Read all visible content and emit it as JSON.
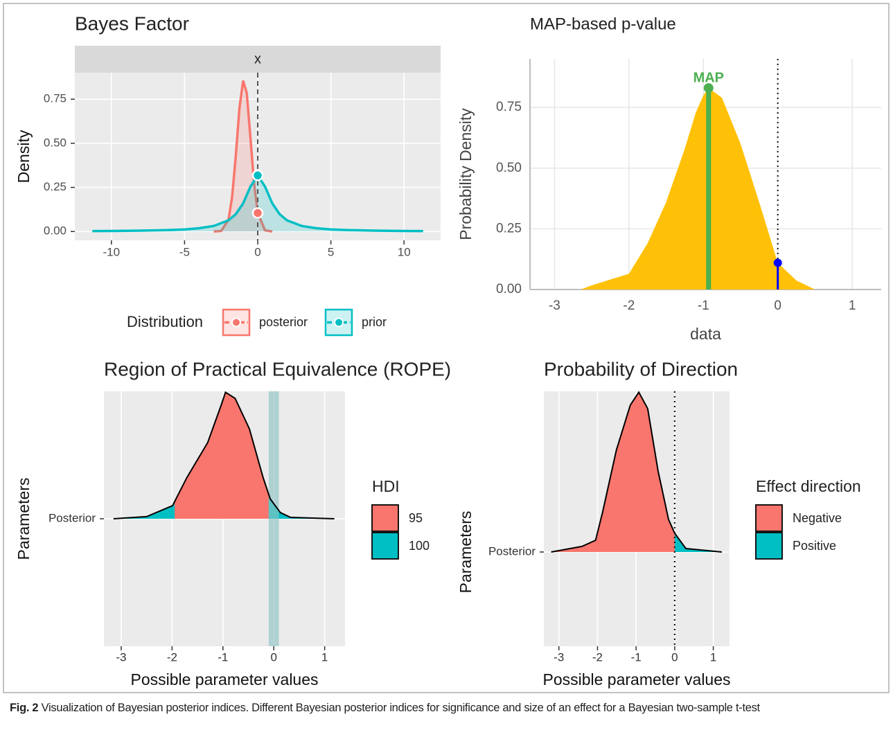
{
  "chart_data": [
    {
      "type": "density",
      "title": "Bayes Factor",
      "facet_label": "x",
      "ylabel": "Density",
      "xlim": [
        -12.5,
        12.5
      ],
      "xticks": [
        -10,
        -5,
        0,
        5,
        10
      ],
      "ylim": [
        -0.05,
        0.9
      ],
      "yticks": [
        {
          "value": 0,
          "label": "0.00"
        },
        0.25,
        {
          "value": 0.5,
          "label": "0.50"
        },
        0.75
      ],
      "grid": true,
      "vline": 0,
      "legend_title": "Distribution",
      "legend": "bottom",
      "series": [
        {
          "name": "posterior",
          "color": "#F8766D",
          "x": [
            -3,
            -2.5,
            -2,
            -1.75,
            -1.5,
            -1.25,
            -1,
            -0.75,
            -0.5,
            -0.25,
            0,
            0.5,
            1
          ],
          "values": [
            0,
            0.003,
            0.066,
            0.194,
            0.426,
            0.698,
            0.855,
            0.784,
            0.537,
            0.275,
            0.105,
            0.007,
            0
          ]
        },
        {
          "name": "prior",
          "color": "#00BFC4",
          "x": [
            -11.3,
            -10,
            -8,
            -6,
            -5,
            -4,
            -3,
            -2,
            -1.5,
            -1,
            -0.5,
            0,
            0.5,
            1,
            1.5,
            2,
            3,
            4,
            5,
            6,
            8,
            10,
            11.3
          ],
          "values": [
            0.0025,
            0.0031,
            0.0049,
            0.0086,
            0.0122,
            0.0187,
            0.0318,
            0.0636,
            0.0978,
            0.159,
            0.254,
            0.318,
            0.254,
            0.159,
            0.0978,
            0.0636,
            0.0318,
            0.0187,
            0.0122,
            0.0086,
            0.0049,
            0.0031,
            0.0025
          ]
        }
      ]
    },
    {
      "type": "area",
      "title": "MAP-based p-value",
      "xlabel": "data",
      "ylabel": "Probability Density",
      "xlim": [
        -3.33,
        1.39
      ],
      "xticks": [
        -3,
        -2,
        -1,
        0,
        1
      ],
      "ylim": [
        0,
        0.95
      ],
      "yticks": [
        {
          "value": 0,
          "label": "0.00"
        },
        0.25,
        {
          "value": 0.5,
          "label": "0.50"
        },
        0.75
      ],
      "grid": true,
      "color": "#FFC107",
      "x": [
        -2.65,
        -2.5,
        -2,
        -1.75,
        -1.5,
        -1.25,
        -1.1,
        -1,
        -0.93,
        -0.75,
        -0.5,
        -0.25,
        0,
        0.25,
        0.5
      ],
      "values": [
        0,
        0.017,
        0.065,
        0.19,
        0.36,
        0.58,
        0.73,
        0.8,
        0.83,
        0.79,
        0.6,
        0.36,
        0.11,
        0.037,
        0
      ],
      "map_label": "MAP",
      "map_x": -0.93,
      "map_color": "#4CAF50",
      "vline": 0,
      "point_color": "#0000FF"
    },
    {
      "type": "ridge",
      "title": "Region of Practical Equivalence (ROPE)",
      "xlabel": "Possible parameter values",
      "ylabel": "Parameters",
      "categories": [
        "Posterior"
      ],
      "xlim": [
        -3.34,
        1.4
      ],
      "xticks": [
        -3,
        -2,
        -1,
        0,
        1
      ],
      "grid": true,
      "x": [
        -3.15,
        -2.5,
        -1.99,
        -1.71,
        -1.3,
        -1.03,
        -0.95,
        -0.76,
        -0.48,
        -0.21,
        -0.07,
        0.13,
        0.33,
        1.19
      ],
      "values": [
        0,
        0.014,
        0.086,
        0.27,
        0.5,
        0.75,
        0.83,
        0.79,
        0.59,
        0.27,
        0.13,
        0.04,
        0.009,
        0
      ],
      "legend_title": "HDI",
      "series": [
        {
          "name": "95",
          "color": "#F8766D"
        },
        {
          "name": "100",
          "color": "#00BFC4"
        }
      ],
      "hdi": [
        -1.95,
        -0.1
      ],
      "rope": [
        -0.1,
        0.1
      ],
      "rope_color": "#8FC3C3"
    },
    {
      "type": "ridge",
      "title": "Probability of Direction",
      "xlabel": "Possible parameter values",
      "ylabel": "Parameters",
      "categories": [
        "Posterior"
      ],
      "xlim": [
        -3.39,
        1.42
      ],
      "xticks": [
        -3,
        -2,
        -1,
        0,
        1
      ],
      "grid": true,
      "x": [
        -3.2,
        -2.4,
        -2.05,
        -1.87,
        -1.51,
        -1.15,
        -0.93,
        -0.7,
        -0.43,
        -0.16,
        0,
        0.29,
        1.22
      ],
      "values": [
        0,
        0.029,
        0.061,
        0.205,
        0.529,
        0.763,
        0.83,
        0.745,
        0.421,
        0.169,
        0.097,
        0.018,
        0
      ],
      "legend_title": "Effect direction",
      "series": [
        {
          "name": "Negative",
          "color": "#F8766D"
        },
        {
          "name": "Positive",
          "color": "#00BFC4"
        }
      ],
      "vline": 0
    }
  ],
  "caption": {
    "label": "Fig. 2",
    "text": "Visualization of Bayesian posterior indices. Different Bayesian posterior indices for significance and size of an effect for a Bayesian two-sample t-test"
  }
}
